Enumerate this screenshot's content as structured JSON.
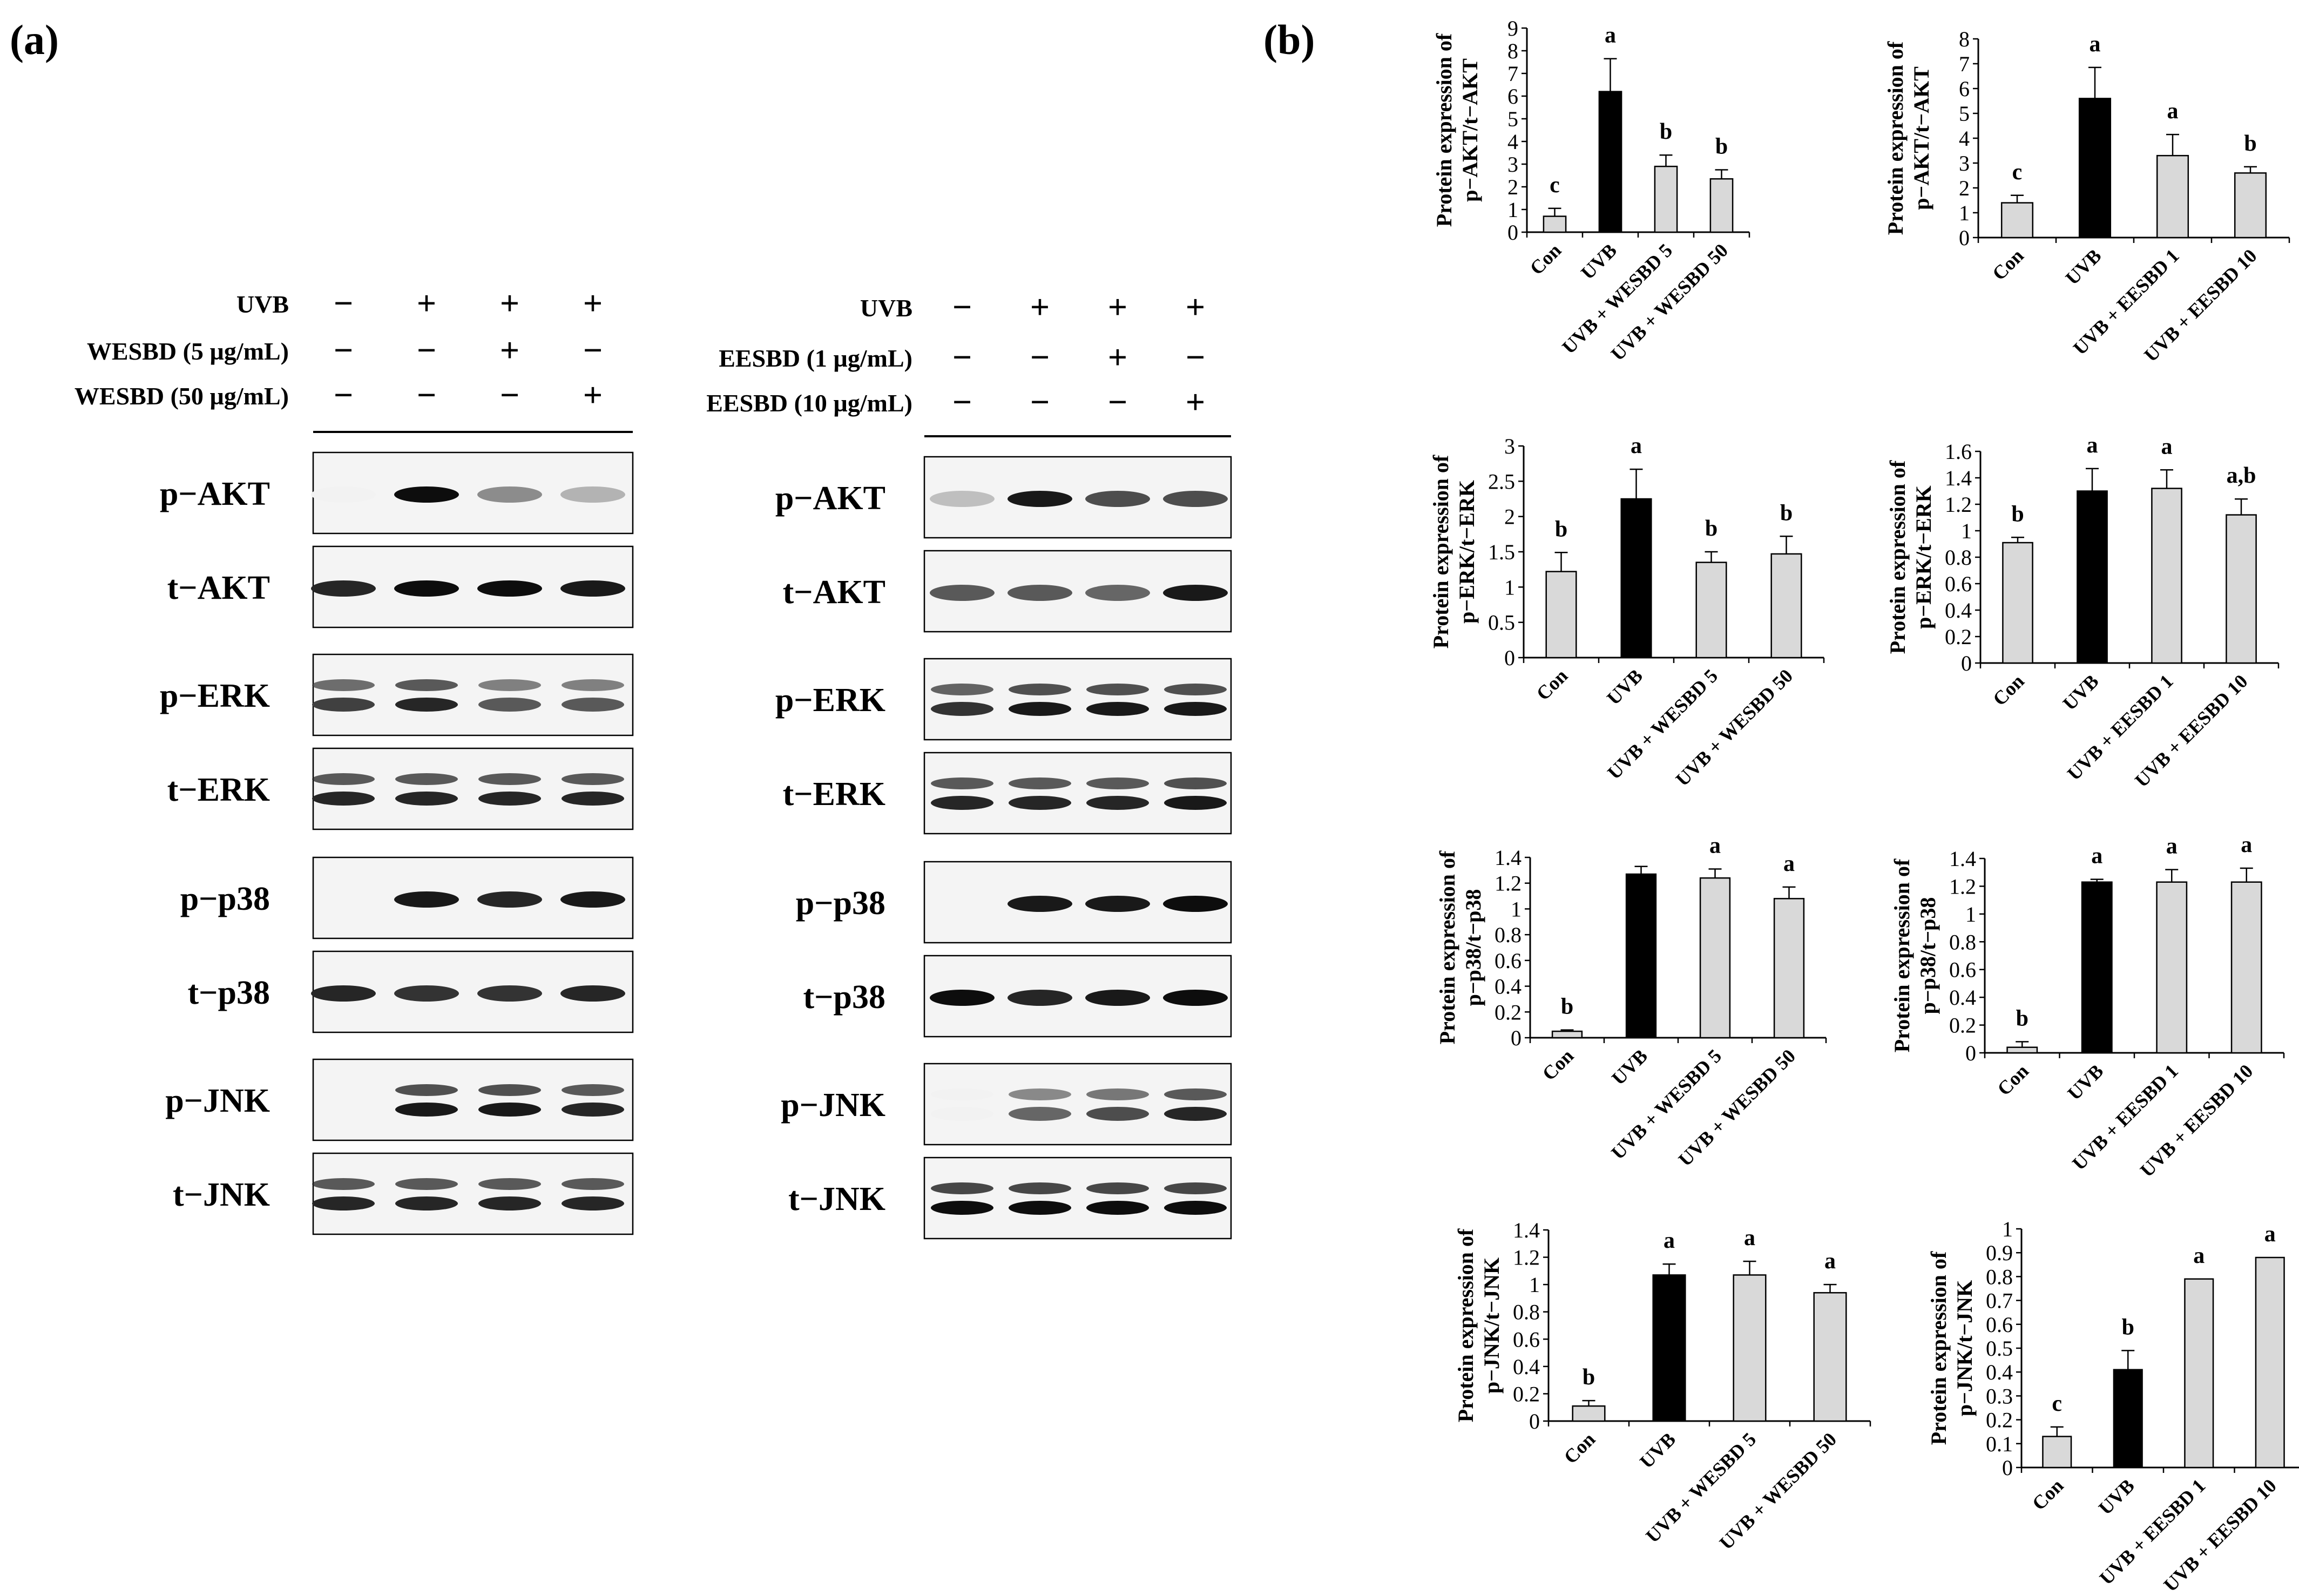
{
  "panel_a": {
    "label": "(a)",
    "left_blot": {
      "conditions": [
        {
          "label": "UVB",
          "signs": [
            "−",
            "+",
            "+",
            "+"
          ]
        },
        {
          "label": "WESBD   (5 µg/mL)",
          "signs": [
            "−",
            "−",
            "+",
            "−"
          ]
        },
        {
          "label": "WESBD (50 µg/mL)",
          "signs": [
            "−",
            "−",
            "−",
            "+"
          ]
        }
      ],
      "rows": [
        {
          "label": "p−AKT",
          "bands": [
            0.05,
            0.95,
            0.45,
            0.3
          ],
          "double": false
        },
        {
          "label": "t−AKT",
          "bands": [
            0.85,
            0.95,
            0.95,
            0.9
          ],
          "double": false
        },
        {
          "label": "p−ERK",
          "bands": [
            0.75,
            0.85,
            0.65,
            0.65
          ],
          "double": true
        },
        {
          "label": "t−ERK",
          "bands": [
            0.85,
            0.85,
            0.85,
            0.85
          ],
          "double": true
        },
        {
          "label": "p−p38",
          "bands": [
            0.0,
            0.9,
            0.85,
            0.9
          ],
          "double": false
        },
        {
          "label": "t−p38",
          "bands": [
            0.85,
            0.8,
            0.8,
            0.85
          ],
          "double": false
        },
        {
          "label": "p−JNK",
          "bands": [
            0.0,
            0.9,
            0.9,
            0.85
          ],
          "double": true
        },
        {
          "label": "t−JNK",
          "bands": [
            0.85,
            0.85,
            0.85,
            0.85
          ],
          "double": true
        }
      ]
    },
    "right_blot": {
      "conditions": [
        {
          "label": "UVB",
          "signs": [
            "−",
            "+",
            "+",
            "+"
          ]
        },
        {
          "label": "EESBD  (1 µg/mL)",
          "signs": [
            "−",
            "−",
            "+",
            "−"
          ]
        },
        {
          "label": "EESBD (10 µg/mL)",
          "signs": [
            "−",
            "−",
            "−",
            "+"
          ]
        }
      ],
      "rows": [
        {
          "label": "p−AKT",
          "bands": [
            0.25,
            0.9,
            0.7,
            0.7
          ],
          "double": false
        },
        {
          "label": "t−AKT",
          "bands": [
            0.65,
            0.65,
            0.6,
            0.9
          ],
          "double": false
        },
        {
          "label": "p−ERK",
          "bands": [
            0.8,
            0.9,
            0.9,
            0.9
          ],
          "double": true
        },
        {
          "label": "t−ERK",
          "bands": [
            0.85,
            0.85,
            0.85,
            0.9
          ],
          "double": true
        },
        {
          "label": "p−p38",
          "bands": [
            0.0,
            0.9,
            0.9,
            0.95
          ],
          "double": false
        },
        {
          "label": "t−p38",
          "bands": [
            0.95,
            0.85,
            0.9,
            0.95
          ],
          "double": false
        },
        {
          "label": "p−JNK",
          "bands": [
            0.05,
            0.6,
            0.7,
            0.85
          ],
          "double": true
        },
        {
          "label": "t−JNK",
          "bands": [
            0.95,
            0.95,
            0.95,
            0.95
          ],
          "double": true
        }
      ]
    }
  },
  "panel_b": {
    "label": "(b)"
  },
  "chart_data": [
    {
      "type": "bar",
      "ylabel": [
        "Protein expression of",
        "p−AKT/t−AKT"
      ],
      "categories": [
        "Con",
        "UVB",
        "UVB + WESBD 5",
        "UVB + WESBD 50"
      ],
      "values": [
        0.7,
        6.2,
        2.9,
        2.35
      ],
      "errors": [
        0.35,
        1.45,
        0.5,
        0.4
      ],
      "letters": [
        "c",
        "a",
        "b",
        "b"
      ],
      "ylim": [
        0,
        9
      ],
      "yticks": [
        "0",
        "1",
        "2",
        "3",
        "4",
        "5",
        "6",
        "7",
        "8",
        "9"
      ],
      "colors": [
        "#d9d9d9",
        "#000000",
        "#d9d9d9",
        "#d9d9d9"
      ]
    },
    {
      "type": "bar",
      "ylabel": [
        "Protein expression of",
        "p−AKT/t−AKT"
      ],
      "categories": [
        "Con",
        "UVB",
        "UVB + EESBD 1",
        "UVB + EESBD 10"
      ],
      "values": [
        1.4,
        5.6,
        3.3,
        2.6
      ],
      "errors": [
        0.3,
        1.25,
        0.85,
        0.25
      ],
      "letters": [
        "c",
        "a",
        "a",
        "b"
      ],
      "ylim": [
        0,
        8
      ],
      "yticks": [
        "0",
        "1",
        "2",
        "3",
        "4",
        "5",
        "6",
        "7",
        "8"
      ],
      "colors": [
        "#d9d9d9",
        "#000000",
        "#d9d9d9",
        "#d9d9d9"
      ]
    },
    {
      "type": "bar",
      "ylabel": [
        "Protein expression of",
        "p−ERK/t−ERK"
      ],
      "categories": [
        "Con",
        "UVB",
        "UVB + WESBD 5",
        "UVB + WESBD 50"
      ],
      "values": [
        1.22,
        2.25,
        1.35,
        1.47
      ],
      "errors": [
        0.27,
        0.42,
        0.15,
        0.25
      ],
      "letters": [
        "b",
        "a",
        "b",
        "b"
      ],
      "ylim": [
        0,
        3
      ],
      "yticks": [
        "0",
        "0.5",
        "1",
        "1.5",
        "2",
        "2.5",
        "3"
      ],
      "colors": [
        "#d9d9d9",
        "#000000",
        "#d9d9d9",
        "#d9d9d9"
      ]
    },
    {
      "type": "bar",
      "ylabel": [
        "Protein expression of",
        "p−ERK/t−ERK"
      ],
      "categories": [
        "Con",
        "UVB",
        "UVB + EESBD 1",
        "UVB + EESBD 10"
      ],
      "values": [
        0.91,
        1.3,
        1.32,
        1.12
      ],
      "errors": [
        0.04,
        0.17,
        0.14,
        0.12
      ],
      "letters": [
        "b",
        "a",
        "a",
        "a,b"
      ],
      "ylim": [
        0,
        1.6
      ],
      "yticks": [
        "0",
        "0.2",
        "0.4",
        "0.6",
        "0.8",
        "1",
        "1.2",
        "1.4",
        "1.6"
      ],
      "colors": [
        "#d9d9d9",
        "#000000",
        "#d9d9d9",
        "#d9d9d9"
      ]
    },
    {
      "type": "bar",
      "ylabel": [
        "Protein expression of",
        "p−p38/t−p38"
      ],
      "categories": [
        "Con",
        "UVB",
        "UVB + WESBD 5",
        "UVB + WESBD 50"
      ],
      "values": [
        0.05,
        1.27,
        1.24,
        1.08
      ],
      "errors": [
        0.01,
        0.06,
        0.07,
        0.09
      ],
      "letters": [
        "b",
        "",
        "a",
        "a"
      ],
      "ylim": [
        0,
        1.4
      ],
      "yticks": [
        "0",
        "0.2",
        "0.4",
        "0.6",
        "0.8",
        "1",
        "1.2",
        "1.4"
      ],
      "colors": [
        "#d9d9d9",
        "#000000",
        "#d9d9d9",
        "#d9d9d9"
      ]
    },
    {
      "type": "bar",
      "ylabel": [
        "Protein expression of",
        "p−p38/t−p38"
      ],
      "categories": [
        "Con",
        "UVB",
        "UVB + EESBD 1",
        "UVB + EESBD 10"
      ],
      "values": [
        0.04,
        1.23,
        1.23,
        1.23
      ],
      "errors": [
        0.04,
        0.02,
        0.09,
        0.1
      ],
      "letters": [
        "b",
        "a",
        "a",
        "a"
      ],
      "ylim": [
        0,
        1.4
      ],
      "yticks": [
        "0",
        "0.2",
        "0.4",
        "0.6",
        "0.8",
        "1",
        "1.2",
        "1.4"
      ],
      "colors": [
        "#d9d9d9",
        "#000000",
        "#d9d9d9",
        "#d9d9d9"
      ]
    },
    {
      "type": "bar",
      "ylabel": [
        "Protein expression of",
        "p−JNK/t−JNK"
      ],
      "categories": [
        "Con",
        "UVB",
        "UVB + WESBD 5",
        "UVB + WESBD 50"
      ],
      "values": [
        0.11,
        1.07,
        1.07,
        0.94
      ],
      "errors": [
        0.04,
        0.08,
        0.1,
        0.06
      ],
      "letters": [
        "b",
        "a",
        "a",
        "a"
      ],
      "ylim": [
        0,
        1.4
      ],
      "yticks": [
        "0",
        "0.2",
        "0.4",
        "0.6",
        "0.8",
        "1",
        "1.2",
        "1.4"
      ],
      "colors": [
        "#d9d9d9",
        "#000000",
        "#d9d9d9",
        "#d9d9d9"
      ]
    },
    {
      "type": "bar",
      "ylabel": [
        "Protein expression of",
        "p−JNK/t−JNK"
      ],
      "categories": [
        "Con",
        "UVB",
        "UVB + EESBD 1",
        "UVB + EESBD 10"
      ],
      "values": [
        0.13,
        0.41,
        0.79,
        0.88
      ],
      "errors": [
        0.04,
        0.08,
        0.0,
        0.0
      ],
      "letters": [
        "c",
        "b",
        "a",
        "a"
      ],
      "ylim": [
        0,
        1
      ],
      "yticks": [
        "0",
        "0.1",
        "0.2",
        "0.3",
        "0.4",
        "0.5",
        "0.6",
        "0.7",
        "0.8",
        "0.9",
        "1"
      ],
      "colors": [
        "#d9d9d9",
        "#000000",
        "#d9d9d9",
        "#d9d9d9"
      ]
    }
  ]
}
